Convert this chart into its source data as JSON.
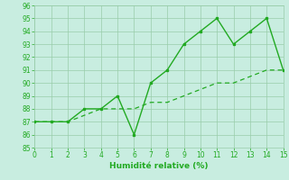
{
  "x": [
    0,
    1,
    2,
    3,
    4,
    5,
    6,
    7,
    8,
    9,
    10,
    11,
    12,
    13,
    14,
    15
  ],
  "y_solid": [
    87,
    87,
    87,
    88,
    88,
    89,
    86,
    90,
    91,
    93,
    94,
    95,
    93,
    94,
    95,
    91
  ],
  "y_dashed": [
    87,
    87,
    87,
    87.5,
    88,
    88,
    88,
    88.5,
    88.5,
    89,
    89.5,
    90,
    90,
    90.5,
    91,
    91
  ],
  "line_color": "#22AA22",
  "bg_color": "#C8EDE0",
  "grid_color": "#99CCAA",
  "xlabel": "Humidité relative (%)",
  "ylabel_ticks": [
    85,
    86,
    87,
    88,
    89,
    90,
    91,
    92,
    93,
    94,
    95,
    96
  ],
  "ylim": [
    85,
    96
  ],
  "xlim": [
    0,
    15
  ]
}
